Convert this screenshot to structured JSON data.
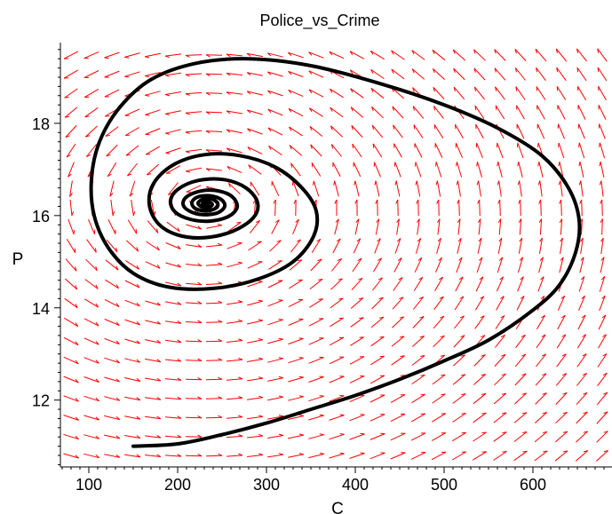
{
  "chart_data": {
    "type": "phase-portrait",
    "title": "Police_vs_Crime",
    "xlabel": "C",
    "ylabel": "P",
    "xlim": [
      68,
      689
    ],
    "ylim": [
      10.55,
      19.75
    ],
    "xticks": [
      100,
      200,
      300,
      400,
      500,
      600
    ],
    "yticks": [
      12,
      14,
      16,
      18
    ],
    "grid": false,
    "legend": "none",
    "colors": {
      "field": "#ff0000",
      "trajectory": "#000000",
      "axes": "#000000"
    },
    "equilibrium": {
      "C": 232,
      "P": 16.25
    },
    "trajectory": {
      "name": "",
      "points": [
        [
          150,
          11.0
        ],
        [
          200,
          11.05
        ],
        [
          250,
          11.25
        ],
        [
          300,
          11.5
        ],
        [
          350,
          11.8
        ],
        [
          400,
          12.1
        ],
        [
          450,
          12.45
        ],
        [
          500,
          12.85
        ],
        [
          550,
          13.3
        ],
        [
          600,
          13.95
        ],
        [
          630,
          14.5
        ],
        [
          648,
          15.2
        ],
        [
          652,
          15.9
        ],
        [
          640,
          16.6
        ],
        [
          610,
          17.3
        ],
        [
          560,
          17.9
        ],
        [
          500,
          18.4
        ],
        [
          430,
          18.85
        ],
        [
          350,
          19.25
        ],
        [
          280,
          19.4
        ],
        [
          220,
          19.3
        ],
        [
          170,
          18.95
        ],
        [
          135,
          18.35
        ],
        [
          112,
          17.6
        ],
        [
          103,
          16.8
        ],
        [
          106,
          16.0
        ],
        [
          122,
          15.3
        ],
        [
          150,
          14.75
        ],
        [
          190,
          14.45
        ],
        [
          240,
          14.42
        ],
        [
          290,
          14.62
        ],
        [
          330,
          15.0
        ],
        [
          353,
          15.55
        ],
        [
          356,
          16.1
        ],
        [
          340,
          16.6
        ],
        [
          310,
          17.05
        ],
        [
          270,
          17.3
        ],
        [
          230,
          17.32
        ],
        [
          195,
          17.1
        ],
        [
          173,
          16.7
        ],
        [
          168,
          16.25
        ],
        [
          178,
          15.83
        ],
        [
          200,
          15.58
        ],
        [
          230,
          15.52
        ],
        [
          262,
          15.66
        ],
        [
          285,
          15.95
        ],
        [
          290,
          16.28
        ],
        [
          277,
          16.6
        ],
        [
          252,
          16.78
        ],
        [
          223,
          16.76
        ],
        [
          201,
          16.58
        ],
        [
          192,
          16.33
        ],
        [
          197,
          16.08
        ],
        [
          214,
          15.92
        ],
        [
          236,
          15.88
        ],
        [
          257,
          15.98
        ],
        [
          267,
          16.18
        ],
        [
          262,
          16.4
        ],
        [
          247,
          16.53
        ],
        [
          228,
          16.54
        ],
        [
          211,
          16.42
        ],
        [
          206,
          16.25
        ],
        [
          213,
          16.1
        ],
        [
          228,
          16.02
        ],
        [
          245,
          16.06
        ],
        [
          253,
          16.2
        ],
        [
          249,
          16.35
        ],
        [
          236,
          16.43
        ],
        [
          222,
          16.4
        ],
        [
          216,
          16.28
        ],
        [
          220,
          16.15
        ],
        [
          232,
          16.1
        ],
        [
          243,
          16.16
        ],
        [
          245,
          16.27
        ],
        [
          238,
          16.36
        ],
        [
          228,
          16.35
        ],
        [
          223,
          16.27
        ],
        [
          227,
          16.19
        ],
        [
          235,
          16.18
        ],
        [
          239,
          16.24
        ],
        [
          235,
          16.3
        ],
        [
          229,
          16.28
        ],
        [
          228,
          16.23
        ],
        [
          233,
          16.21
        ],
        [
          234,
          16.25
        ],
        [
          231,
          16.26
        ],
        [
          232,
          16.25
        ]
      ]
    }
  }
}
